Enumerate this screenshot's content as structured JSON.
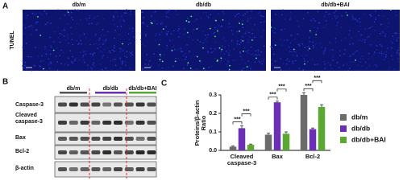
{
  "panel_labels": [
    "A",
    "B",
    "C"
  ],
  "tunel": {
    "row_label": "TUNEL",
    "groups": [
      "db/m",
      "db/db",
      "db/db+BAI"
    ]
  },
  "blot": {
    "groups": [
      "db/m",
      "db/db",
      "db/db+BAI"
    ],
    "rows": [
      "Caspase-3",
      "Cleaved caspase-3",
      "Bax",
      "Bcl-2",
      "β-actin"
    ]
  },
  "chart_data": {
    "type": "bar",
    "y_label": "Proteins/β-actin Ratio",
    "categories": [
      "Cleaved caspase-3",
      "Bax",
      "Bcl-2"
    ],
    "series": [
      {
        "name": "db/m",
        "color": "#6b6b6b",
        "values": [
          0.02,
          0.085,
          0.3
        ],
        "errors": [
          0.004,
          0.008,
          0.012
        ]
      },
      {
        "name": "db/db",
        "color": "#6a2fb3",
        "values": [
          0.12,
          0.26,
          0.115
        ],
        "errors": [
          0.012,
          0.006,
          0.006
        ]
      },
      {
        "name": "db/db+BAI",
        "color": "#5aa832",
        "values": [
          0.03,
          0.09,
          0.235
        ],
        "errors": [
          0.004,
          0.01,
          0.012
        ]
      }
    ],
    "ylim": [
      0,
      0.3
    ],
    "yticks": [
      {
        "value": 0,
        "label": "0.0"
      },
      0.1,
      0.2,
      0.3
    ],
    "significance": [
      "***",
      "***",
      "***",
      "***",
      "***",
      "***"
    ],
    "legend": "right"
  }
}
